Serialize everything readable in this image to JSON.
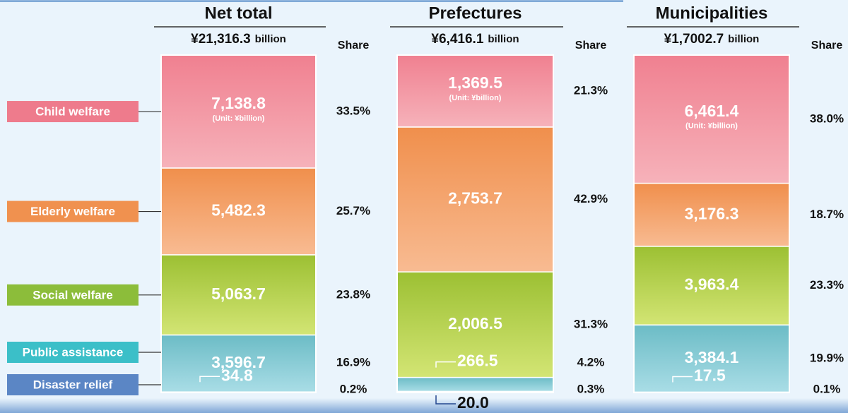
{
  "chart_data": {
    "type": "bar",
    "stacked": true,
    "categories": [
      "Net total",
      "Prefectures",
      "Municipalities"
    ],
    "total_values": [
      "¥21,316.3",
      "¥6,416.1",
      "¥1,7002.7"
    ],
    "total_unit": "billion",
    "share_heading": "Share",
    "unit_note": "(Unit: ¥billion)",
    "series": [
      {
        "name": "Child welfare",
        "color": "#f08090",
        "color_light": "#f6b2ba",
        "label_color": "#ee7b8c",
        "values": [
          7138.8,
          1369.5,
          6461.4
        ],
        "value_labels": [
          "7,138.8",
          "1,369.5",
          "6,461.4"
        ],
        "shares": [
          33.5,
          21.3,
          38.0
        ],
        "share_labels": [
          "33.5%",
          "21.3%",
          "38.0%"
        ]
      },
      {
        "name": "Elderly welfare",
        "color": "#f08f4c",
        "color_light": "#f8bb92",
        "label_color": "#f0914f",
        "values": [
          5482.3,
          2753.7,
          3176.3
        ],
        "value_labels": [
          "5,482.3",
          "2,753.7",
          "3,176.3"
        ],
        "shares": [
          25.7,
          42.9,
          18.7
        ],
        "share_labels": [
          "25.7%",
          "42.9%",
          "18.7%"
        ]
      },
      {
        "name": "Social welfare",
        "color": "#9cc033",
        "color_light": "#d3e574",
        "label_color": "#8cbd3a",
        "values": [
          5063.7,
          2006.5,
          3963.4
        ],
        "value_labels": [
          "5,063.7",
          "2,006.5",
          "3,963.4"
        ],
        "shares": [
          23.8,
          31.3,
          23.3
        ],
        "share_labels": [
          "23.8%",
          "31.3%",
          "23.3%"
        ]
      },
      {
        "name": "Public assistance",
        "color": "#6cbcc6",
        "color_light": "#a9dde6",
        "label_color": "#3bbfc8",
        "values": [
          3596.7,
          266.5,
          3384.1
        ],
        "value_labels": [
          "3,596.7",
          "266.5",
          "3,384.1"
        ],
        "shares": [
          16.9,
          4.2,
          19.9
        ],
        "share_labels": [
          "16.9%",
          "4.2%",
          "19.9%"
        ]
      },
      {
        "name": "Disaster relief",
        "color": "#5a80c0",
        "color_light": "#5a80c0",
        "label_color": "#5b86c5",
        "values": [
          34.8,
          20.0,
          17.5
        ],
        "value_labels": [
          "34.8",
          "20.0",
          "17.5"
        ],
        "shares": [
          0.2,
          0.3,
          0.1
        ],
        "share_labels": [
          "0.2%",
          "0.3%",
          "0.1%"
        ]
      }
    ]
  }
}
